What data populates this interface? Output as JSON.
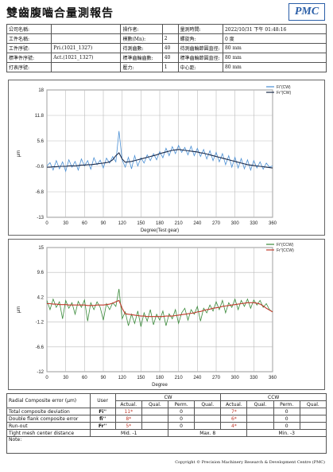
{
  "header": {
    "title": "雙齒腹嚙合量測報告",
    "logo": "PMC"
  },
  "info": {
    "rows": [
      [
        {
          "label": "公司名稱:"
        },
        {
          "label": "操作者:"
        },
        {
          "label": "量測時間:",
          "value": "2022/10/31 下午 01:48:16"
        }
      ],
      [
        {
          "label": "工件名稱:"
        },
        {
          "label": "模數(Mn):",
          "value": "2"
        },
        {
          "label": "螺旋角:",
          "value": "0 度"
        }
      ],
      [
        {
          "label": "工件序號:",
          "value": "Pri.(1021_1327)"
        },
        {
          "label": "待測齒數:",
          "value": "40"
        },
        {
          "label": "待測齒輪節圓直徑:",
          "value": "80 mm"
        }
      ],
      [
        {
          "label": "標準件序號:",
          "value": "Act.(1021_1327)"
        },
        {
          "label": "標準齒輪齒數:",
          "value": "40"
        },
        {
          "label": "標準齒輪節圓直徑:",
          "value": "80 mm"
        }
      ],
      [
        {
          "label": "打表序號:"
        },
        {
          "label": "壓力:",
          "value": "1"
        },
        {
          "label": "中心距:",
          "value": "80 mm"
        }
      ]
    ]
  },
  "chart_data": [
    {
      "type": "line",
      "x_label": "Degree(Test gear)",
      "y_label": "μm",
      "legend": "upper right",
      "grid": true,
      "xlim": [
        0,
        360
      ],
      "xticks": [
        0,
        30,
        60,
        90,
        120,
        150,
        180,
        210,
        240,
        270,
        300,
        330,
        360
      ],
      "ylim": [
        -13,
        18
      ],
      "yticks": [
        -13,
        -6.8,
        -0.6,
        5.6,
        11.8,
        18
      ],
      "x": [
        0,
        5,
        10,
        15,
        20,
        25,
        30,
        35,
        40,
        45,
        50,
        55,
        60,
        65,
        70,
        75,
        80,
        85,
        90,
        95,
        100,
        105,
        110,
        115,
        120,
        125,
        130,
        135,
        140,
        145,
        150,
        155,
        160,
        165,
        170,
        175,
        180,
        185,
        190,
        195,
        200,
        205,
        210,
        215,
        220,
        225,
        230,
        235,
        240,
        245,
        250,
        255,
        260,
        265,
        270,
        275,
        280,
        285,
        290,
        295,
        300,
        305,
        310,
        315,
        320,
        325,
        330,
        335,
        340,
        345,
        350,
        355,
        360
      ],
      "series": [
        {
          "name": "Fi\"(CW)",
          "color": "#4a8fd4",
          "values": [
            -0.5,
            0.3,
            -1.5,
            0.8,
            -1.2,
            0.5,
            -1.8,
            1.0,
            -0.8,
            0.6,
            -1.5,
            1.2,
            -0.5,
            0.8,
            -1.3,
            1.5,
            -0.2,
            0.9,
            -1.0,
            1.4,
            0.2,
            1.8,
            0.5,
            8.0,
            1.0,
            -0.8,
            1.6,
            -1.2,
            2.0,
            -0.5,
            1.5,
            0.2,
            2.2,
            0.8,
            2.5,
            1.0,
            3.0,
            1.5,
            3.8,
            2.0,
            4.2,
            2.5,
            4.5,
            2.8,
            4.0,
            2.2,
            4.3,
            2.0,
            3.8,
            1.8,
            3.5,
            1.2,
            3.2,
            0.8,
            2.8,
            0.5,
            2.5,
            -0.2,
            2.0,
            -0.8,
            1.6,
            -1.0,
            1.3,
            -1.2,
            1.0,
            -1.5,
            0.8,
            -1.0,
            0.5,
            -1.3,
            0.2,
            -0.8,
            -0.5
          ]
        },
        {
          "name": "Fr\"(CW)",
          "color": "#1a2a4a",
          "values": [
            -0.8,
            -0.8,
            -0.7,
            -0.7,
            -0.6,
            -0.6,
            -0.6,
            -0.5,
            -0.5,
            -0.5,
            -0.4,
            -0.3,
            -0.3,
            -0.2,
            -0.2,
            -0.1,
            0,
            0.1,
            0.2,
            0.3,
            0.5,
            1.0,
            2.0,
            2.7,
            1.2,
            0.4,
            0.5,
            0.6,
            0.8,
            1.0,
            1.2,
            1.4,
            1.6,
            1.8,
            2.0,
            2.2,
            2.5,
            2.7,
            2.9,
            3.1,
            3.3,
            3.4,
            3.5,
            3.4,
            3.3,
            3.2,
            3.1,
            3.0,
            2.9,
            2.7,
            2.6,
            2.4,
            2.2,
            2.0,
            1.8,
            1.6,
            1.4,
            1.2,
            1.0,
            0.8,
            0.6,
            0.4,
            0.2,
            0.0,
            -0.2,
            -0.3,
            -0.4,
            -0.5,
            -0.6,
            -0.7,
            -0.8,
            -0.9,
            -1.0
          ]
        }
      ]
    },
    {
      "type": "line",
      "x_label": "Degree",
      "y_label": "μm",
      "legend": "upper right",
      "grid": true,
      "xlim": [
        0,
        360
      ],
      "xticks": [
        0,
        30,
        60,
        90,
        120,
        150,
        180,
        210,
        240,
        270,
        300,
        330,
        360
      ],
      "ylim": [
        -12,
        15
      ],
      "yticks": [
        -12,
        -6.6,
        -1.2,
        4.2,
        9.6,
        15
      ],
      "x": [
        0,
        5,
        10,
        15,
        20,
        25,
        30,
        35,
        40,
        45,
        50,
        55,
        60,
        65,
        70,
        75,
        80,
        85,
        90,
        95,
        100,
        105,
        110,
        115,
        120,
        125,
        130,
        135,
        140,
        145,
        150,
        155,
        160,
        165,
        170,
        175,
        180,
        185,
        190,
        195,
        200,
        205,
        210,
        215,
        220,
        225,
        230,
        235,
        240,
        245,
        250,
        255,
        260,
        265,
        270,
        275,
        280,
        285,
        290,
        295,
        300,
        305,
        310,
        315,
        320,
        325,
        330,
        335,
        340,
        345,
        350,
        355,
        360
      ],
      "series": [
        {
          "name": "Fi\"(CCW)",
          "color": "#3a8a3a",
          "values": [
            3.5,
            1.5,
            3.8,
            2.0,
            3.2,
            -0.5,
            3.5,
            1.8,
            3.0,
            0.5,
            3.3,
            2.0,
            3.6,
            -1.0,
            3.0,
            1.5,
            3.2,
            2.0,
            -0.8,
            2.8,
            1.5,
            3.0,
            2.2,
            6.0,
            -0.5,
            1.0,
            -2.0,
            0.5,
            -1.5,
            1.2,
            -2.2,
            0.8,
            -1.0,
            1.5,
            -1.8,
            0.5,
            -0.8,
            1.2,
            -2.0,
            0.6,
            -0.5,
            1.5,
            -1.5,
            0.8,
            1.8,
            -0.8,
            1.5,
            0.5,
            2.2,
            -1.0,
            1.8,
            0.8,
            2.5,
            1.2,
            3.2,
            1.5,
            3.5,
            0.8,
            3.0,
            2.0,
            3.8,
            1.5,
            3.5,
            2.2,
            3.8,
            1.8,
            3.6,
            2.5,
            3.5,
            2.0,
            2.8,
            1.5,
            1.0
          ]
        },
        {
          "name": "Fr\"(CCW)",
          "color": "#c0392b",
          "values": [
            2.8,
            2.8,
            2.7,
            2.7,
            2.6,
            2.6,
            2.6,
            2.5,
            2.5,
            2.5,
            2.5,
            2.5,
            2.5,
            2.4,
            2.4,
            2.4,
            2.5,
            2.5,
            2.5,
            2.6,
            2.7,
            2.9,
            3.2,
            3.5,
            1.8,
            0.6,
            0.5,
            0.4,
            0.3,
            0.2,
            0.1,
            0.1,
            0.0,
            0.0,
            0.0,
            0.0,
            0.0,
            0.0,
            0.1,
            0.1,
            0.1,
            0.2,
            0.3,
            0.4,
            0.5,
            0.6,
            0.7,
            0.8,
            1.0,
            1.1,
            1.3,
            1.5,
            1.6,
            1.8,
            1.9,
            2.0,
            2.2,
            2.3,
            2.4,
            2.5,
            2.6,
            2.7,
            2.8,
            2.9,
            3.0,
            3.0,
            3.0,
            2.9,
            2.7,
            2.3,
            1.8,
            1.4,
            1.0
          ]
        }
      ]
    }
  ],
  "results": {
    "header": {
      "title": "Radial Composite error (μm)",
      "user": "User",
      "cw": "CW",
      "ccw": "CCW"
    },
    "subheader": [
      "Actual.",
      "Qual.",
      "Perm.",
      "Qual."
    ],
    "rows": [
      {
        "label": "Total composite deviation",
        "symbol": "Fi''",
        "cw_actual": "11*",
        "cw_perm": "0",
        "ccw_actual": "7*",
        "ccw_perm": "0"
      },
      {
        "label": "Double flank composite error",
        "symbol": "fi''",
        "cw_actual": "8*",
        "cw_perm": "0",
        "ccw_actual": "6*",
        "ccw_perm": "0"
      },
      {
        "label": "Run-out",
        "symbol": "Fr''",
        "cw_actual": "5*",
        "cw_perm": "0",
        "ccw_actual": "4*",
        "ccw_perm": "0"
      }
    ],
    "tight": {
      "label": "Tight mesh center distance",
      "mid": "Mid. -1",
      "max": "Max. 8",
      "min": "Min. -3"
    },
    "note": "Note:"
  },
  "footer": "Copyright © Precision Machinery Research & Development Centre (PMC)"
}
